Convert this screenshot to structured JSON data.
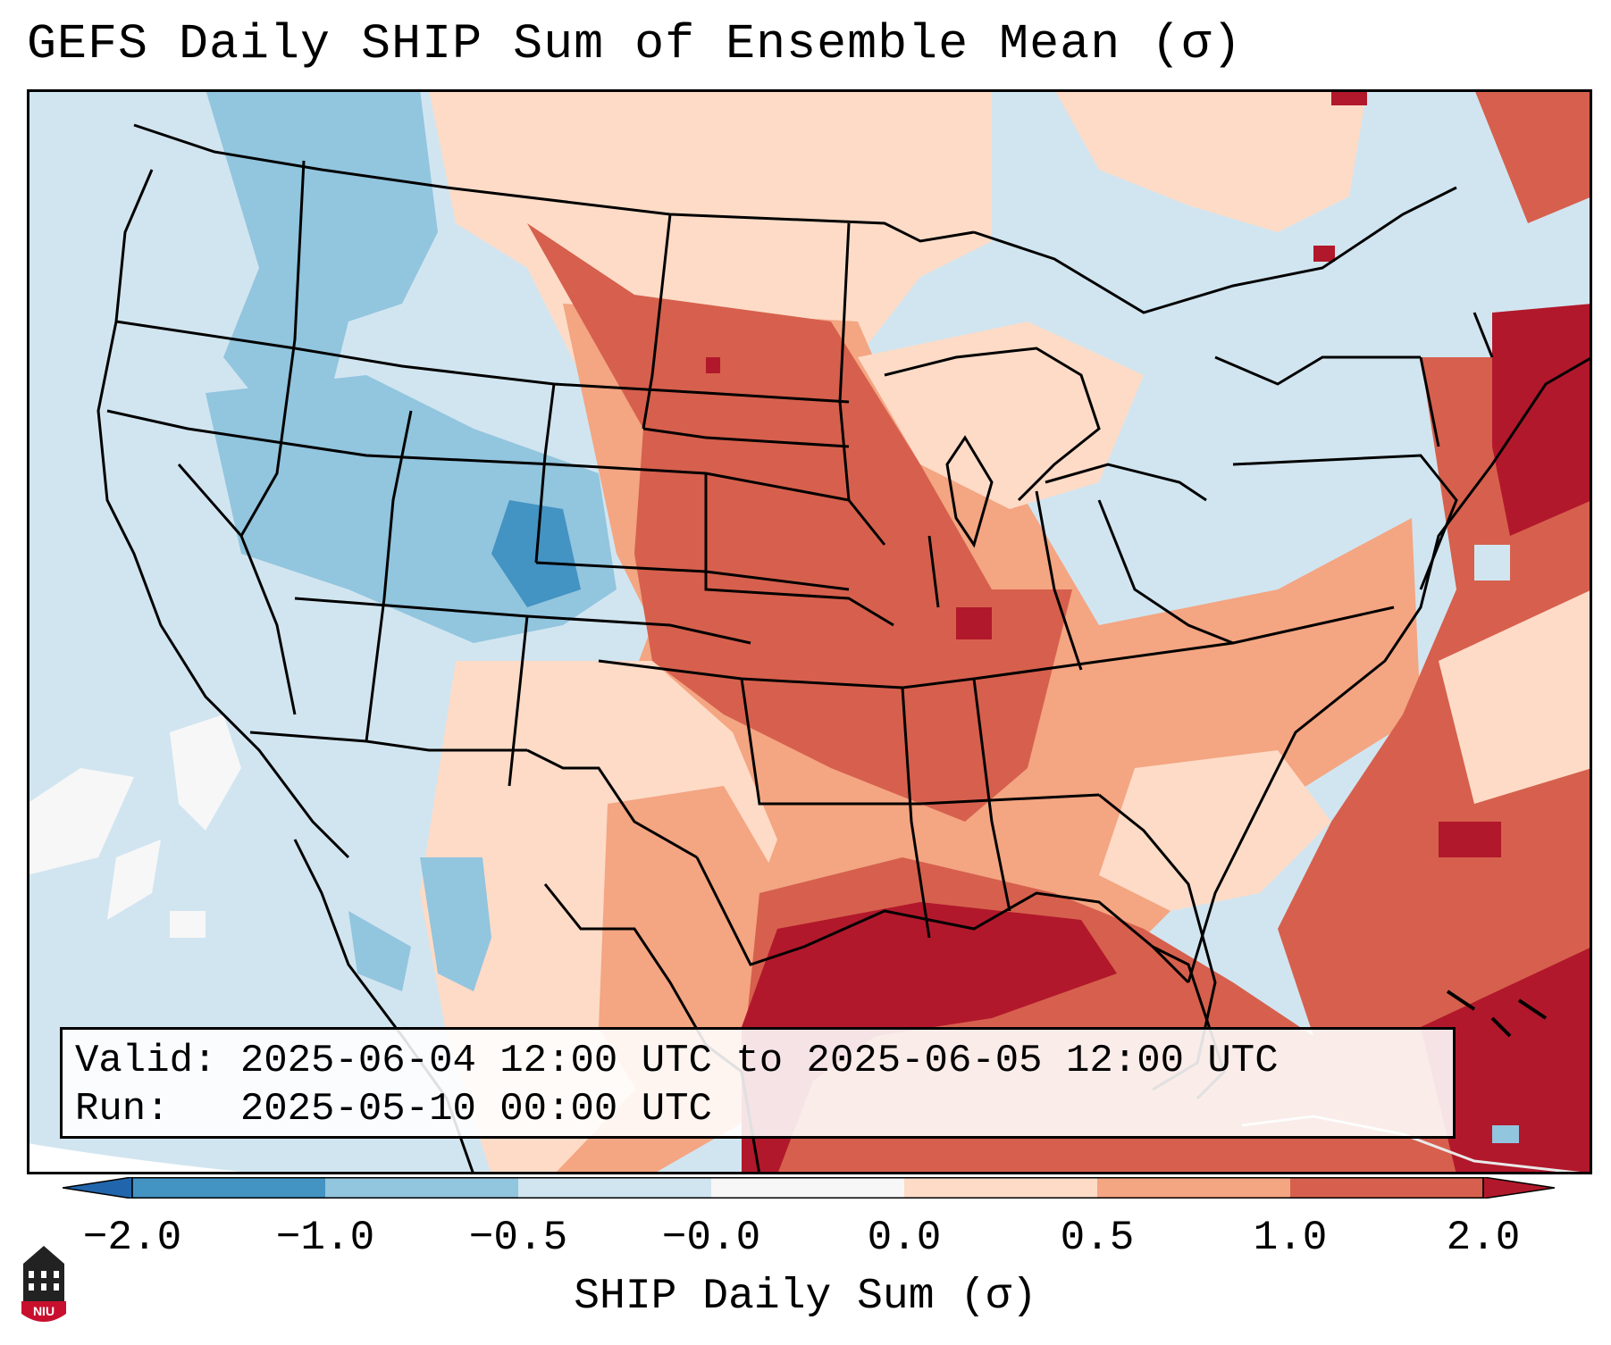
{
  "title": "GEFS Daily SHIP Sum of Ensemble Mean (σ)",
  "info": {
    "valid": "Valid: 2025-06-04 12:00 UTC to 2025-06-05 12:00 UTC",
    "run": "Run:   2025-05-10 00:00 UTC"
  },
  "colorbar": {
    "label": "SHIP Daily Sum (σ)",
    "ticks": [
      "−2.0",
      "−1.0",
      "−0.5",
      "−0.0",
      "0.0",
      "0.5",
      "1.0",
      "2.0"
    ],
    "bins": [
      {
        "range": "-2.0 to -1.0",
        "color": "#4393c3"
      },
      {
        "range": "-1.0 to -0.5",
        "color": "#92c5de"
      },
      {
        "range": "-0.5 to -0.0",
        "color": "#d1e5f0"
      },
      {
        "range": "-0.0 to 0.0",
        "color": "#f7f7f7"
      },
      {
        "range": "0.0 to 0.5",
        "color": "#fddbc7"
      },
      {
        "range": "0.5 to 1.0",
        "color": "#f4a582"
      },
      {
        "range": "1.0 to 2.0",
        "color": "#d6604d"
      },
      {
        "range": "> 2.0",
        "color": "#b2182b"
      },
      {
        "range": "< -2.0",
        "color": "#2166ac"
      }
    ]
  },
  "logo": {
    "text": "NIU",
    "icon": "university-building-icon"
  }
}
